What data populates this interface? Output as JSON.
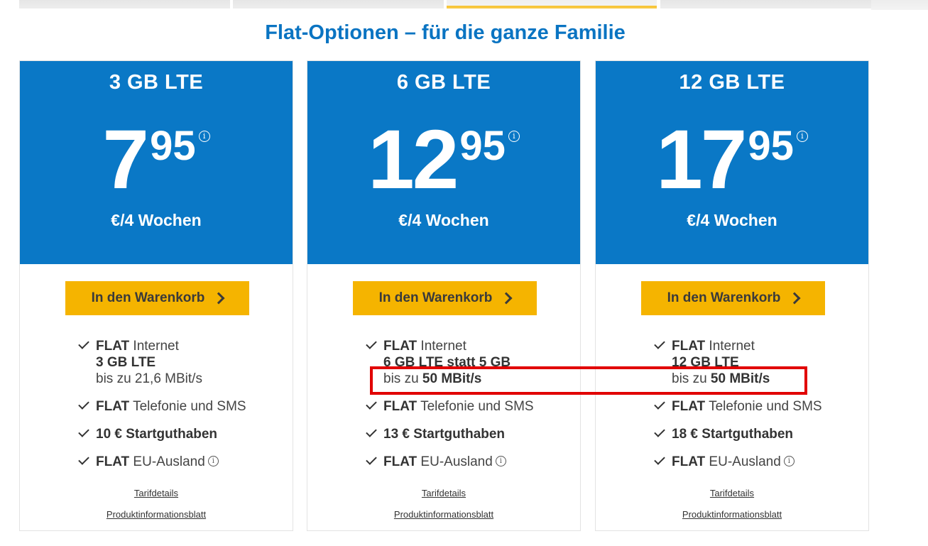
{
  "headline": "Flat-Optionen – für die ganze Familie",
  "accent_color": "#0a78c6",
  "cta_color": "#f5b400",
  "highlight_color": "#e10000",
  "plans": [
    {
      "name": "3 GB LTE",
      "price_main": "7",
      "price_cents": "95",
      "info_glyph": "i",
      "price_unit": "€/4 Wochen",
      "cart_label": "In den Warenkorb",
      "feature_internet_flat": "FLAT",
      "feature_internet_text": " Internet",
      "feature_volume": "3 GB LTE",
      "feature_speed_prefix": "bis zu 21,6 MBit/s",
      "feature_speed_value": "",
      "feature_phone_flat": "FLAT",
      "feature_phone_text": " Telefonie und SMS",
      "feature_credit": "10 € Startguthaben",
      "feature_eu_flat": "FLAT",
      "feature_eu_text": " EU-Ausland",
      "link_details": "Tarifdetails",
      "link_info": "Produktinformationsblatt"
    },
    {
      "name": "6 GB LTE",
      "price_main": "12",
      "price_cents": "95",
      "info_glyph": "i",
      "price_unit": "€/4 Wochen",
      "cart_label": "In den Warenkorb",
      "feature_internet_flat": "FLAT",
      "feature_internet_text": " Internet",
      "feature_volume": "6 GB LTE statt 5 GB",
      "feature_speed_prefix": "bis zu ",
      "feature_speed_value": "50 MBit/s",
      "feature_phone_flat": "FLAT",
      "feature_phone_text": " Telefonie und SMS",
      "feature_credit": "13 € Startguthaben",
      "feature_eu_flat": "FLAT",
      "feature_eu_text": " EU-Ausland",
      "link_details": "Tarifdetails",
      "link_info": "Produktinformationsblatt"
    },
    {
      "name": "12 GB LTE",
      "price_main": "17",
      "price_cents": "95",
      "info_glyph": "i",
      "price_unit": "€/4 Wochen",
      "cart_label": "In den Warenkorb",
      "feature_internet_flat": "FLAT",
      "feature_internet_text": " Internet",
      "feature_volume": "12 GB LTE",
      "feature_speed_prefix": "bis zu ",
      "feature_speed_value": "50 MBit/s",
      "feature_phone_flat": "FLAT",
      "feature_phone_text": " Telefonie und SMS",
      "feature_credit": "18 € Startguthaben",
      "feature_eu_flat": "FLAT",
      "feature_eu_text": " EU-Ausland",
      "link_details": "Tarifdetails",
      "link_info": "Produktinformationsblatt"
    }
  ]
}
